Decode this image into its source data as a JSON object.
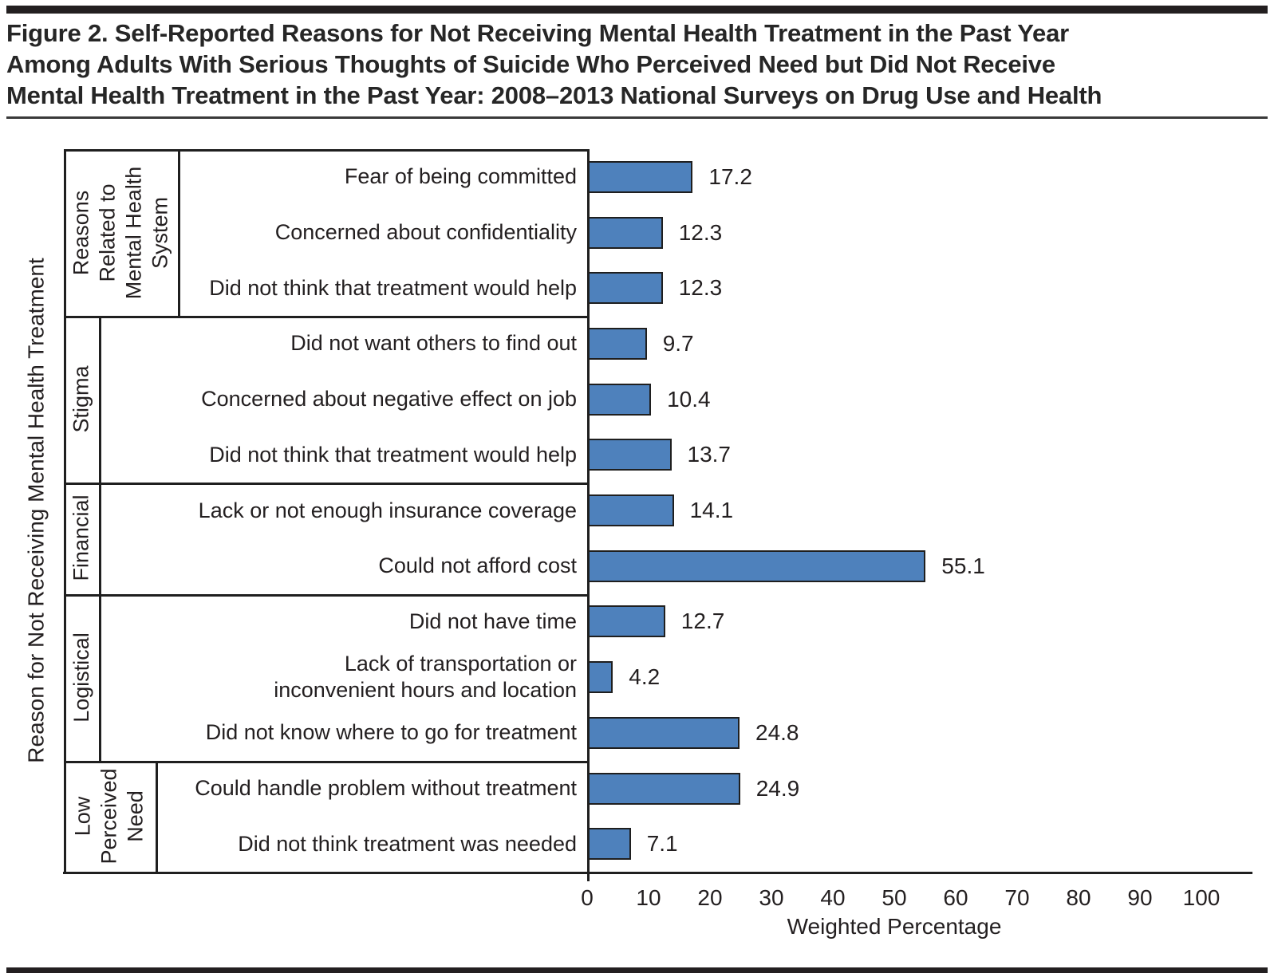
{
  "page": {
    "title_lines": [
      "Figure 2. Self-Reported Reasons for Not Receiving Mental Health Treatment in the Past Year",
      "Among Adults With Serious Thoughts of Suicide Who Perceived Need but Did Not Receive",
      "Mental Health Treatment in the Past Year: 2008–2013 National Surveys on Drug Use and Health"
    ]
  },
  "chart_data": {
    "type": "bar",
    "orientation": "horizontal",
    "title": "Figure 2. Self-Reported Reasons for Not Receiving Mental Health Treatment in the Past Year Among Adults With Serious Thoughts of Suicide Who Perceived Need but Did Not Receive Mental Health Treatment in the Past Year: 2008–2013 National Surveys on Drug Use and Health",
    "xlabel": "Weighted Percentage",
    "ylabel": "Reason for Not Receiving Mental Health Treatment",
    "xlim": [
      0,
      100
    ],
    "xticks": [
      0,
      10,
      20,
      30,
      40,
      50,
      60,
      70,
      80,
      90,
      100
    ],
    "grid": false,
    "legend": false,
    "bar_color": "#4E81BC",
    "bar_border_color": "#1F1F1F",
    "line_color": "#1F1F1F",
    "groups": [
      {
        "label": "Reasons Related to Mental Health System",
        "label_lines": [
          "Reasons",
          "Related to",
          "Mental Health",
          "System"
        ],
        "items": [
          {
            "category": "Fear of being committed",
            "value": 17.2
          },
          {
            "category": "Concerned about confidentiality",
            "value": 12.3
          },
          {
            "category": "Did not think that treatment would help",
            "value": 12.3
          }
        ]
      },
      {
        "label": "Stigma",
        "label_lines": [
          "Stigma"
        ],
        "items": [
          {
            "category": "Did not want others to find out",
            "value": 9.7
          },
          {
            "category": "Concerned about negative effect on job",
            "value": 10.4
          },
          {
            "category": "Did not think that treatment would help",
            "value": 13.7
          }
        ]
      },
      {
        "label": "Financial",
        "label_lines": [
          "Financial"
        ],
        "items": [
          {
            "category": "Lack or not enough insurance coverage",
            "value": 14.1
          },
          {
            "category": "Could not afford cost",
            "value": 55.1
          }
        ]
      },
      {
        "label": "Logistical",
        "label_lines": [
          "Logistical"
        ],
        "items": [
          {
            "category": "Did not have time",
            "value": 12.7
          },
          {
            "category": "Lack of transportation or inconvenient hours and location",
            "wrap": [
              "Lack of transportation or",
              "inconvenient hours and location"
            ],
            "value": 4.2
          },
          {
            "category": "Did not know where to go for treatment",
            "value": 24.8
          }
        ]
      },
      {
        "label": "Low Perceived Need",
        "label_lines": [
          "Low",
          "Perceived",
          "Need"
        ],
        "items": [
          {
            "category": "Could handle problem without treatment",
            "value": 24.9
          },
          {
            "category": "Did not think treatment was needed",
            "value": 7.1
          }
        ]
      }
    ]
  }
}
